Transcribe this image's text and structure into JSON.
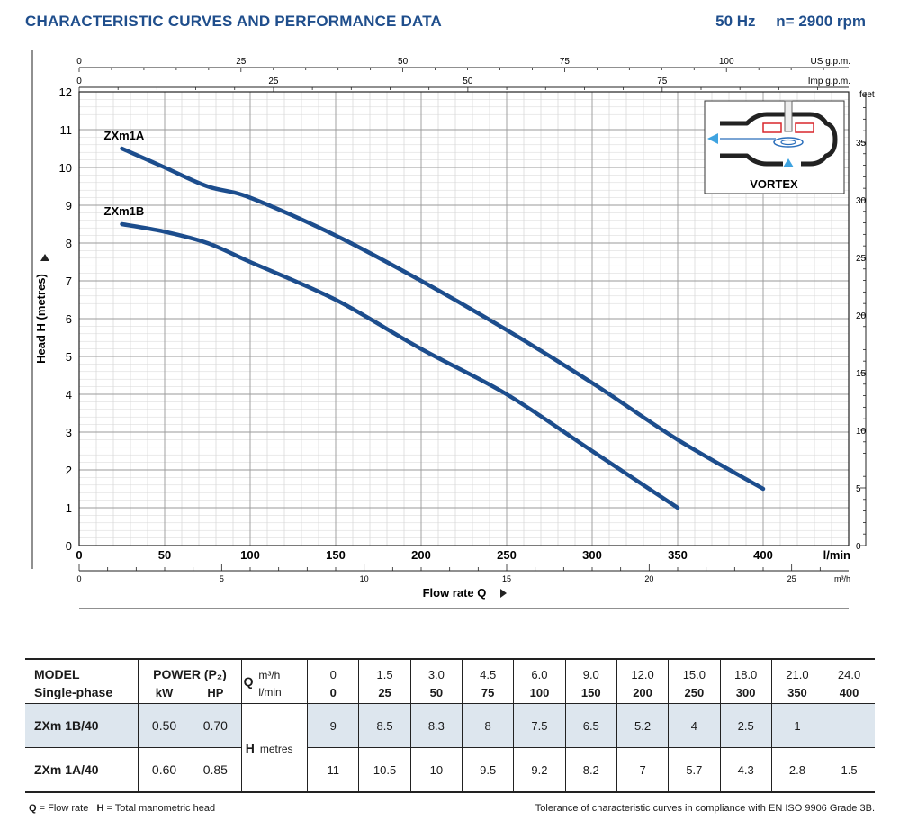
{
  "header": {
    "title": "CHARACTERISTIC CURVES AND PERFORMANCE DATA",
    "frequency": "50 Hz",
    "speed": "n= 2900 rpm"
  },
  "chart_data": {
    "type": "line",
    "xlabel": "Flow rate  Q",
    "ylabel": "Head H  (metres)",
    "xlim": [
      0,
      450
    ],
    "ylim": [
      0,
      12
    ],
    "x_unit": "l/min",
    "x_ticks": [
      0,
      50,
      100,
      150,
      200,
      250,
      300,
      350,
      400
    ],
    "y_ticks": [
      0,
      1,
      2,
      3,
      4,
      5,
      6,
      7,
      8,
      9,
      10,
      11,
      12
    ],
    "grid": true,
    "secondary_axes": {
      "us_gpm": {
        "label": "US g.p.m.",
        "ticks": [
          0,
          25,
          50,
          75,
          100
        ]
      },
      "imp_gpm": {
        "label": "Imp g.p.m.",
        "ticks": [
          0,
          25,
          50,
          75
        ]
      },
      "m3h": {
        "label": "m³/h",
        "ticks": [
          0,
          5,
          10,
          15,
          20,
          25
        ]
      },
      "feet": {
        "label": "feet",
        "ticks": [
          0,
          5,
          10,
          15,
          20,
          25,
          30,
          35
        ]
      }
    },
    "series": [
      {
        "name": "ZXm1A",
        "color": "#1c4d8d",
        "x": [
          25,
          50,
          75,
          100,
          150,
          200,
          250,
          300,
          350,
          400
        ],
        "y": [
          10.5,
          10.0,
          9.5,
          9.2,
          8.2,
          7.0,
          5.7,
          4.3,
          2.8,
          1.5
        ]
      },
      {
        "name": "ZXm1B",
        "color": "#1c4d8d",
        "x": [
          25,
          50,
          75,
          100,
          150,
          200,
          250,
          300,
          350
        ],
        "y": [
          8.5,
          8.3,
          8.0,
          7.5,
          6.5,
          5.2,
          4.0,
          2.5,
          1.0
        ]
      }
    ]
  },
  "inset": {
    "label": "VORTEX"
  },
  "table": {
    "model_label": "MODEL",
    "phase_label": "Single-phase",
    "power_label": "POWER (P₂)",
    "kw_label": "kW",
    "hp_label": "HP",
    "q_label": "Q",
    "m3h_unit": "m³/h",
    "lmin_unit": "l/min",
    "h_label": "H",
    "metres_label": "metres",
    "m3h": [
      "0",
      "1.5",
      "3.0",
      "4.5",
      "6.0",
      "9.0",
      "12.0",
      "15.0",
      "18.0",
      "21.0",
      "24.0"
    ],
    "lmin": [
      "0",
      "25",
      "50",
      "75",
      "100",
      "150",
      "200",
      "250",
      "300",
      "350",
      "400"
    ],
    "rows": [
      {
        "model": "ZXm 1B/40",
        "kw": "0.50",
        "hp": "0.70",
        "values": [
          "9",
          "8.5",
          "8.3",
          "8",
          "7.5",
          "6.5",
          "5.2",
          "4",
          "2.5",
          "1",
          ""
        ]
      },
      {
        "model": "ZXm 1A/40",
        "kw": "0.60",
        "hp": "0.85",
        "values": [
          "11",
          "10.5",
          "10",
          "9.5",
          "9.2",
          "8.2",
          "7",
          "5.7",
          "4.3",
          "2.8",
          "1.5"
        ]
      }
    ]
  },
  "footer": {
    "q_abbr": "Q",
    "q_def": " = Flow rate",
    "h_abbr": "H",
    "h_def": " = Total manometric head",
    "tolerance": "Tolerance of characteristic curves in compliance with EN ISO 9906 Grade 3B."
  }
}
